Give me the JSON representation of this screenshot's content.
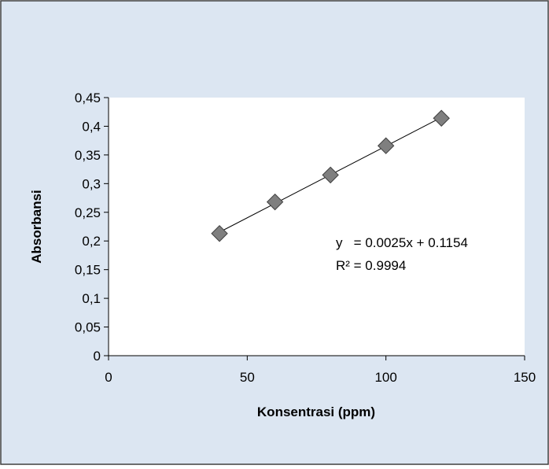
{
  "chart_data": {
    "type": "scatter",
    "xlabel": "Konsentrasi (ppm)",
    "ylabel": "Absorbansi",
    "xlim": [
      0,
      150
    ],
    "ylim": [
      0,
      0.45
    ],
    "x_ticks": [
      "0",
      "50",
      "100",
      "150"
    ],
    "y_ticks": [
      "0",
      "0,05",
      "0,1",
      "0,15",
      "0,2",
      "0,25",
      "0,3",
      "0,35",
      "0,4",
      "0,45"
    ],
    "x_tick_values": [
      0,
      50,
      100,
      150
    ],
    "y_tick_values": [
      0,
      0.05,
      0.1,
      0.15,
      0.2,
      0.25,
      0.3,
      0.35,
      0.4,
      0.45
    ],
    "series": [
      {
        "x": [
          40,
          60,
          80,
          100,
          120
        ],
        "y": [
          0.213,
          0.268,
          0.315,
          0.366,
          0.414
        ]
      }
    ],
    "trendline": {
      "slope": 0.0025,
      "intercept": 0.1154,
      "x_range": [
        40,
        120
      ]
    },
    "annotations": {
      "equation": "y   = 0.0025x + 0.1154",
      "r_squared": "R² = 0.9994"
    },
    "grid": false,
    "legend": "none",
    "colors": {
      "chart_area_bg": "#dce6f2",
      "plot_area_bg": "#ffffff",
      "marker_fill": "#7f7f7f",
      "marker_stroke": "#404040",
      "frame_border": "#404040",
      "axis": "#000000"
    }
  }
}
